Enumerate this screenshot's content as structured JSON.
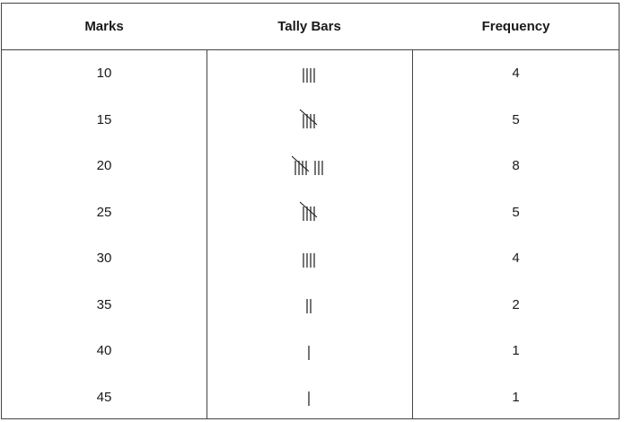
{
  "table": {
    "headers": {
      "marks": "Marks",
      "tally": "Tally Bars",
      "frequency": "Frequency"
    },
    "rows": [
      {
        "marks": "10",
        "tally": 4,
        "frequency": "4"
      },
      {
        "marks": "15",
        "tally": 5,
        "frequency": "5"
      },
      {
        "marks": "20",
        "tally": 8,
        "frequency": "8"
      },
      {
        "marks": "25",
        "tally": 5,
        "frequency": "5"
      },
      {
        "marks": "30",
        "tally": 4,
        "frequency": "4"
      },
      {
        "marks": "35",
        "tally": 2,
        "frequency": "2"
      },
      {
        "marks": "40",
        "tally": 1,
        "frequency": "1"
      },
      {
        "marks": "45",
        "tally": 1,
        "frequency": "1"
      }
    ]
  }
}
